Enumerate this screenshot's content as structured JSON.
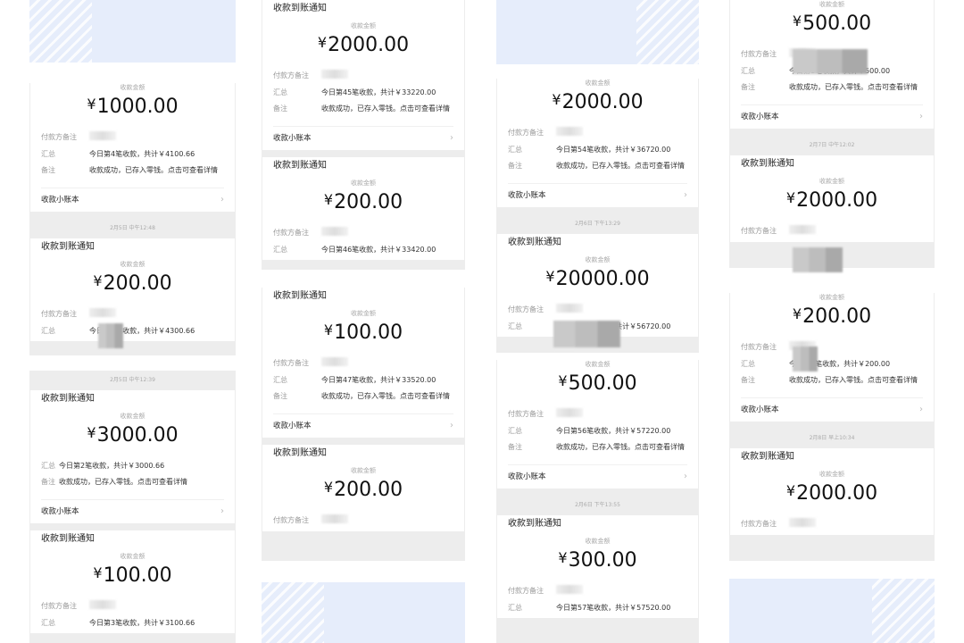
{
  "labels": {
    "card_title": "收款到账通知",
    "amount_label": "收款金额",
    "payer_note_label": "付款方备注",
    "summary_label": "汇总",
    "note_label": "备注",
    "ledger_label": "收款小账本",
    "currency": "¥",
    "chevron": "›"
  },
  "colors": {
    "page_bg": "#ededed",
    "card_bg": "#ffffff",
    "placeholder_blue": "#e6edfb"
  },
  "panels": [
    {
      "items": [
        {
          "type": "card",
          "amount": "1000.00",
          "payer": true,
          "summary": "今日第4笔收款，共计￥4100.66",
          "note": "收款成功，已存入零钱。点击可查看详情"
        },
        {
          "type": "timestamp",
          "text": "2月5日 中午12:48"
        },
        {
          "type": "card",
          "amount": "200.00",
          "payer": true,
          "summary": "今日第5笔收款，共计￥4300.66",
          "note": "收款成功，已存入零钱。点击可查看详情"
        }
      ]
    },
    {
      "items": [
        {
          "type": "timestamp",
          "text": "2月5日 中午12:39"
        },
        {
          "type": "card",
          "amount": "3000.00",
          "payer": false,
          "compact": true,
          "summary": "今日第2笔收款，共计￥3000.66",
          "note": "收款成功，已存入零钱。点击可查看详情"
        },
        {
          "type": "card",
          "amount": "100.00",
          "payer": true,
          "summary": "今日第3笔收款，共计￥3100.66",
          "note": "收款成功，已存入零钱。点击可查看详情"
        }
      ]
    },
    {
      "items": [
        {
          "type": "card",
          "amount": "2000.00",
          "payer": true,
          "summary": "今日第45笔收款，共计￥33220.00",
          "note": "收款成功，已存入零钱。点击可查看详情"
        },
        {
          "type": "card",
          "amount": "200.00",
          "payer": true,
          "summary": "今日第46笔收款，共计￥33420.00",
          "note": "收款成功，已存入零钱。点击可查看详情"
        }
      ]
    },
    {
      "items": [
        {
          "type": "card",
          "amount": "100.00",
          "payer": true,
          "summary": "今日第47笔收款，共计￥33520.00",
          "note": "收款成功，已存入零钱。点击可查看详情"
        },
        {
          "type": "card",
          "amount": "200.00",
          "payer": true,
          "summary": "",
          "note": ""
        }
      ]
    },
    {
      "items": [
        {
          "type": "card",
          "amount": "2000.00",
          "payer": true,
          "summary": "今日第54笔收款，共计￥36720.00",
          "note": "收款成功，已存入零钱。点击可查看详情"
        },
        {
          "type": "timestamp",
          "text": "2月6日 下午13:29"
        },
        {
          "type": "card",
          "amount": "20000.00",
          "payer": true,
          "summary": "今日第55笔收款，共计￥56720.00",
          "note": ""
        }
      ]
    },
    {
      "items": [
        {
          "type": "card",
          "amount": "500.00",
          "payer": true,
          "summary": "今日第56笔收款，共计￥57220.00",
          "note": "收款成功，已存入零钱。点击可查看详情"
        },
        {
          "type": "timestamp",
          "text": "2月6日 下午13:55"
        },
        {
          "type": "card",
          "amount": "300.00",
          "payer": true,
          "summary": "今日第57笔收款，共计￥57520.00",
          "note": ""
        }
      ]
    },
    {
      "items": [
        {
          "type": "card",
          "amount": "500.00",
          "payer": true,
          "summary": "今日第1笔收款，共计￥500.00",
          "note": "收款成功，已存入零钱。点击可查看详情"
        },
        {
          "type": "timestamp",
          "text": "2月7日 中午12:02"
        },
        {
          "type": "card",
          "amount": "2000.00",
          "payer": true,
          "summary": "",
          "note": ""
        }
      ]
    },
    {
      "items": [
        {
          "type": "card",
          "amount": "200.00",
          "payer": true,
          "summary": "今日第1笔收款，共计￥200.00",
          "note": "收款成功，已存入零钱。点击可查看详情"
        },
        {
          "type": "timestamp",
          "text": "2月8日 早上10:34"
        },
        {
          "type": "card",
          "amount": "2000.00",
          "payer": true,
          "summary": "",
          "note": ""
        }
      ]
    }
  ]
}
